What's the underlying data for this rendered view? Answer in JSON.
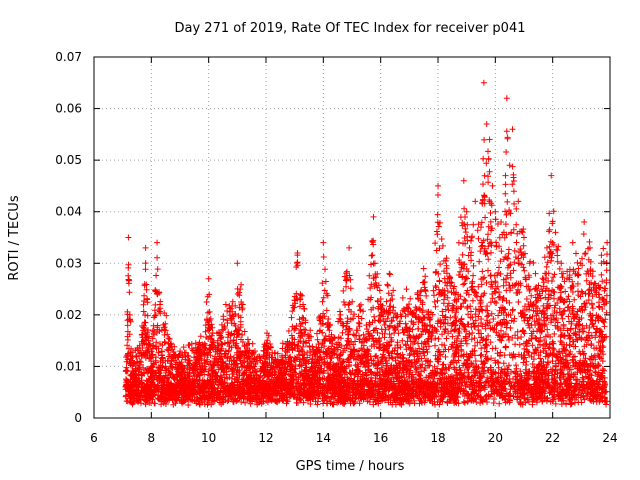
{
  "chart_data": {
    "type": "scatter",
    "title": "Day 271 of 2019, Rate Of TEC Index for receiver p041",
    "xlabel": "GPS time / hours",
    "ylabel": "ROTI / TECUs",
    "xlim": [
      6,
      24
    ],
    "ylim": [
      0,
      0.07
    ],
    "x_ticks": [
      6,
      8,
      10,
      12,
      14,
      16,
      18,
      20,
      22,
      24
    ],
    "x_tick_labels": [
      "6",
      "8",
      "10",
      "12",
      "14",
      "16",
      "18",
      "20",
      "22",
      "24"
    ],
    "y_ticks": [
      0,
      0.01,
      0.02,
      0.03,
      0.04,
      0.05,
      0.06,
      0.07
    ],
    "y_tick_labels": [
      "0",
      "0.01",
      "0.02",
      "0.03",
      "0.04",
      "0.05",
      "0.06",
      "0.07"
    ],
    "grid": true,
    "marker": "+",
    "series": [
      {
        "name": "ROTI",
        "color": "#ff0000",
        "x": [
          7.1,
          7.2,
          7.25,
          7.3,
          7.4,
          7.6,
          7.8,
          7.9,
          8.0,
          8.2,
          8.3,
          8.5,
          8.7,
          9.0,
          9.3,
          9.6,
          9.9,
          10.0,
          10.1,
          10.2,
          10.4,
          10.6,
          10.8,
          11.0,
          11.1,
          11.3,
          11.5,
          11.8,
          12.0,
          12.3,
          12.6,
          12.9,
          13.1,
          13.2,
          13.5,
          13.8,
          14.0,
          14.2,
          14.4,
          14.6,
          14.9,
          15.1,
          15.3,
          15.5,
          15.75,
          15.8,
          16.0,
          16.3,
          16.6,
          16.9,
          17.2,
          17.5,
          17.7,
          18.0,
          18.3,
          18.6,
          18.9,
          19.0,
          19.1,
          19.3,
          19.5,
          19.6,
          19.7,
          19.8,
          19.9,
          20.0,
          20.2,
          20.3,
          20.4,
          20.5,
          20.6,
          20.8,
          21.0,
          21.2,
          21.4,
          21.6,
          21.8,
          21.95,
          22.1,
          22.3,
          22.5,
          22.7,
          22.9,
          23.1,
          23.3,
          23.5,
          23.7,
          23.9
        ],
        "y": [
          0.006,
          0.035,
          0.02,
          0.012,
          0.009,
          0.011,
          0.033,
          0.015,
          0.008,
          0.034,
          0.022,
          0.017,
          0.011,
          0.009,
          0.012,
          0.01,
          0.018,
          0.027,
          0.014,
          0.011,
          0.016,
          0.022,
          0.019,
          0.03,
          0.025,
          0.013,
          0.01,
          0.008,
          0.014,
          0.009,
          0.011,
          0.016,
          0.032,
          0.024,
          0.015,
          0.012,
          0.034,
          0.018,
          0.013,
          0.02,
          0.033,
          0.016,
          0.021,
          0.018,
          0.039,
          0.03,
          0.022,
          0.028,
          0.018,
          0.025,
          0.02,
          0.029,
          0.019,
          0.045,
          0.031,
          0.024,
          0.046,
          0.04,
          0.033,
          0.042,
          0.037,
          0.065,
          0.057,
          0.054,
          0.045,
          0.04,
          0.038,
          0.036,
          0.062,
          0.049,
          0.056,
          0.042,
          0.035,
          0.03,
          0.028,
          0.025,
          0.033,
          0.047,
          0.036,
          0.03,
          0.027,
          0.034,
          0.029,
          0.038,
          0.033,
          0.026,
          0.03,
          0.034
        ]
      }
    ]
  }
}
